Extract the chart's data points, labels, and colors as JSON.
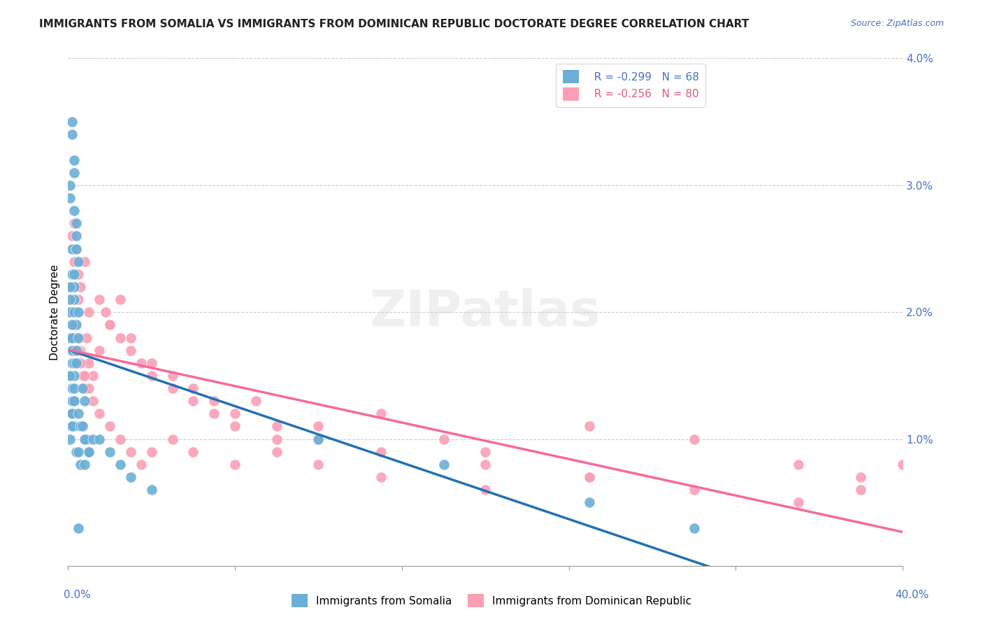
{
  "title": "IMMIGRANTS FROM SOMALIA VS IMMIGRANTS FROM DOMINICAN REPUBLIC DOCTORATE DEGREE CORRELATION CHART",
  "source": "Source: ZipAtlas.com",
  "ylabel": "Doctorate Degree",
  "ylabel_right_vals": [
    0.0,
    0.01,
    0.02,
    0.03,
    0.04
  ],
  "somalia_color": "#6baed6",
  "dr_color": "#fa9fb5",
  "somalia_line_color": "#2171b5",
  "dr_line_color": "#f768a1",
  "watermark": "ZIPatlas",
  "xlim": [
    0.0,
    0.4
  ],
  "ylim": [
    0.0,
    0.04
  ],
  "somalia_scatter_x": [
    0.001,
    0.002,
    0.003,
    0.001,
    0.004,
    0.002,
    0.003,
    0.005,
    0.002,
    0.001,
    0.003,
    0.004,
    0.002,
    0.001,
    0.002,
    0.003,
    0.001,
    0.002,
    0.003,
    0.004,
    0.005,
    0.003,
    0.002,
    0.001,
    0.004,
    0.003,
    0.002,
    0.005,
    0.003,
    0.002,
    0.004,
    0.003,
    0.002,
    0.001,
    0.003,
    0.002,
    0.001,
    0.002,
    0.003,
    0.004,
    0.007,
    0.008,
    0.005,
    0.006,
    0.009,
    0.01,
    0.008,
    0.007,
    0.006,
    0.005,
    0.012,
    0.01,
    0.008,
    0.015,
    0.02,
    0.025,
    0.03,
    0.04,
    0.12,
    0.18,
    0.25,
    0.002,
    0.003,
    0.004,
    0.002,
    0.003,
    0.3,
    0.005
  ],
  "somalia_scatter_y": [
    0.02,
    0.025,
    0.022,
    0.018,
    0.019,
    0.023,
    0.021,
    0.024,
    0.016,
    0.03,
    0.028,
    0.026,
    0.017,
    0.029,
    0.015,
    0.02,
    0.022,
    0.018,
    0.016,
    0.025,
    0.02,
    0.023,
    0.019,
    0.021,
    0.017,
    0.015,
    0.014,
    0.018,
    0.013,
    0.012,
    0.016,
    0.014,
    0.013,
    0.015,
    0.011,
    0.012,
    0.01,
    0.011,
    0.013,
    0.009,
    0.014,
    0.013,
    0.012,
    0.011,
    0.01,
    0.009,
    0.01,
    0.011,
    0.008,
    0.009,
    0.01,
    0.009,
    0.008,
    0.01,
    0.009,
    0.008,
    0.007,
    0.006,
    0.01,
    0.008,
    0.005,
    0.035,
    0.032,
    0.027,
    0.034,
    0.031,
    0.003,
    0.003
  ],
  "dr_scatter_x": [
    0.001,
    0.002,
    0.003,
    0.004,
    0.005,
    0.006,
    0.007,
    0.008,
    0.009,
    0.01,
    0.012,
    0.015,
    0.018,
    0.02,
    0.025,
    0.03,
    0.035,
    0.04,
    0.05,
    0.06,
    0.07,
    0.08,
    0.09,
    0.1,
    0.12,
    0.15,
    0.18,
    0.2,
    0.25,
    0.3,
    0.35,
    0.38,
    0.002,
    0.003,
    0.004,
    0.005,
    0.006,
    0.008,
    0.01,
    0.015,
    0.02,
    0.025,
    0.03,
    0.04,
    0.05,
    0.06,
    0.07,
    0.08,
    0.1,
    0.12,
    0.15,
    0.2,
    0.25,
    0.003,
    0.004,
    0.005,
    0.006,
    0.008,
    0.01,
    0.012,
    0.015,
    0.02,
    0.025,
    0.03,
    0.035,
    0.04,
    0.05,
    0.06,
    0.08,
    0.1,
    0.12,
    0.15,
    0.2,
    0.25,
    0.3,
    0.35,
    0.38,
    0.4,
    0.002,
    0.003
  ],
  "dr_scatter_y": [
    0.018,
    0.02,
    0.019,
    0.016,
    0.021,
    0.017,
    0.015,
    0.014,
    0.018,
    0.016,
    0.015,
    0.017,
    0.02,
    0.019,
    0.021,
    0.018,
    0.016,
    0.015,
    0.014,
    0.013,
    0.012,
    0.011,
    0.013,
    0.01,
    0.011,
    0.012,
    0.01,
    0.009,
    0.011,
    0.01,
    0.008,
    0.007,
    0.022,
    0.024,
    0.025,
    0.023,
    0.022,
    0.024,
    0.02,
    0.021,
    0.019,
    0.018,
    0.017,
    0.016,
    0.015,
    0.014,
    0.013,
    0.012,
    0.011,
    0.01,
    0.009,
    0.008,
    0.007,
    0.019,
    0.018,
    0.017,
    0.016,
    0.015,
    0.014,
    0.013,
    0.012,
    0.011,
    0.01,
    0.009,
    0.008,
    0.009,
    0.01,
    0.009,
    0.008,
    0.009,
    0.008,
    0.007,
    0.006,
    0.007,
    0.006,
    0.005,
    0.006,
    0.008,
    0.026,
    0.027
  ]
}
